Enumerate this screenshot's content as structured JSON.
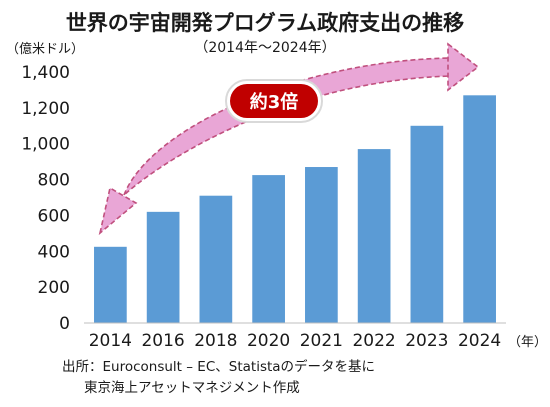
{
  "chart_data": {
    "type": "bar",
    "title": "世界の宇宙開発プログラム政府支出の推移",
    "subtitle": "（2014年～2024年）",
    "ylabel": "（億米ドル）",
    "xlabel": "（年）",
    "categories": [
      "2014",
      "2016",
      "2018",
      "2020",
      "2021",
      "2022",
      "2023",
      "2024"
    ],
    "values": [
      425,
      620,
      710,
      825,
      870,
      970,
      1100,
      1270
    ],
    "ylim": [
      0,
      1400
    ],
    "yticks": [
      0,
      200,
      400,
      600,
      800,
      1000,
      1200,
      1400
    ],
    "ytick_labels": [
      "0",
      "200",
      "400",
      "600",
      "800",
      "1,000",
      "1,200",
      "1,400"
    ],
    "grid": false,
    "bar_color": "#5b9bd5",
    "annotation": {
      "text": "約3倍",
      "badge_color": "#c00000",
      "arrow_color": "#e9a6d6",
      "arrow_stroke": "#c0507e"
    },
    "source_line1": "出所：Euroconsult – EC、Statistaのデータを基に",
    "source_line2": "東京海上アセットマネジメント作成"
  }
}
